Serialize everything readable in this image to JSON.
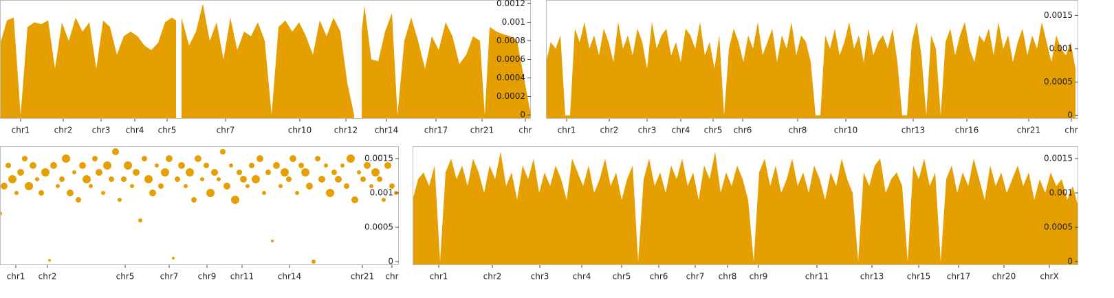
{
  "chart_data": [
    {
      "type": "area",
      "color": "#e69f00",
      "xlim": [
        0,
        772
      ],
      "ylim": [
        -4e-05,
        0.00124
      ],
      "yticks": [
        0,
        0.0002,
        0.0004,
        0.0006,
        0.0008,
        0.001,
        0.0012
      ],
      "xticks": [
        {
          "value": 30,
          "label": "chr1"
        },
        {
          "value": 92,
          "label": "chr2"
        },
        {
          "value": 147,
          "label": "chr3"
        },
        {
          "value": 196,
          "label": "chr4"
        },
        {
          "value": 243,
          "label": "chr5"
        },
        {
          "value": 328,
          "label": "chr7"
        },
        {
          "value": 436,
          "label": "chr10"
        },
        {
          "value": 503,
          "label": "chr12"
        },
        {
          "value": 562,
          "label": "chr14"
        },
        {
          "value": 634,
          "label": "chr17"
        },
        {
          "value": 701,
          "label": "chr21"
        },
        {
          "value": 764,
          "label": "chr"
        }
      ],
      "x": [
        0,
        10,
        20,
        30,
        40,
        50,
        60,
        70,
        80,
        90,
        100,
        110,
        120,
        130,
        140,
        150,
        160,
        170,
        180,
        190,
        200,
        210,
        220,
        230,
        240,
        250,
        256,
        260,
        264,
        275,
        285,
        295,
        305,
        315,
        325,
        335,
        345,
        355,
        365,
        375,
        385,
        395,
        405,
        415,
        425,
        435,
        445,
        455,
        465,
        475,
        485,
        495,
        505,
        515,
        520,
        526,
        530,
        540,
        550,
        560,
        570,
        578,
        588,
        598,
        608,
        618,
        628,
        638,
        648,
        658,
        668,
        678,
        688,
        698,
        705,
        712,
        722,
        732,
        742,
        752,
        762,
        772
      ],
      "values": [
        0.00076,
        0.00102,
        0.00105,
        0,
        0.00095,
        0.001,
        0.00098,
        0.00102,
        0.0005,
        0.001,
        0.0008,
        0.00105,
        0.0009,
        0.001,
        0.0005,
        0.00102,
        0.00095,
        0.00065,
        0.00085,
        0.0009,
        0.00085,
        0.00075,
        0.0007,
        0.00078,
        0.001,
        0.00105,
        0.00102,
        null,
        0.00105,
        0.00075,
        0.0009,
        0.0012,
        0.0008,
        0.001,
        0.0006,
        0.00105,
        0.0007,
        0.0009,
        0.00085,
        0.001,
        0.0008,
        0,
        0.00095,
        0.00102,
        0.0009,
        0.001,
        0.00085,
        0.00065,
        0.00102,
        0.00085,
        0.00105,
        0.0009,
        0.00035,
        0,
        null,
        0.0009,
        0.00118,
        0.0006,
        0.00058,
        0.0009,
        0.0011,
        0,
        0.0008,
        0.00105,
        0.0008,
        0.0005,
        0.00085,
        0.0007,
        0.001,
        0.00085,
        0.00055,
        0.00065,
        0.00085,
        0.0008,
        0,
        0.00095,
        0.0009,
        0.00087,
        0.00085,
        0.0008,
        0.0004,
        0
      ]
    },
    {
      "type": "area",
      "color": "#e69f00",
      "xlim": [
        0,
        774
      ],
      "ylim": [
        -5e-05,
        0.00173
      ],
      "yticks": [
        0,
        0.0005,
        0.001,
        0.0015
      ],
      "xticks": [
        {
          "value": 30,
          "label": "chr1"
        },
        {
          "value": 92,
          "label": "chr2"
        },
        {
          "value": 147,
          "label": "chr3"
        },
        {
          "value": 196,
          "label": "chr4"
        },
        {
          "value": 243,
          "label": "chr5"
        },
        {
          "value": 286,
          "label": "chr6"
        },
        {
          "value": 366,
          "label": "chr8"
        },
        {
          "value": 436,
          "label": "chr10"
        },
        {
          "value": 534,
          "label": "chr13"
        },
        {
          "value": 612,
          "label": "chr16"
        },
        {
          "value": 702,
          "label": "chr21"
        },
        {
          "value": 764,
          "label": "chr"
        }
      ],
      "x": [
        0,
        7,
        14,
        21,
        28,
        35,
        42,
        49,
        56,
        63,
        70,
        77,
        84,
        91,
        98,
        105,
        112,
        119,
        126,
        133,
        140,
        147,
        154,
        161,
        168,
        175,
        182,
        189,
        196,
        203,
        210,
        217,
        224,
        231,
        238,
        245,
        252,
        259,
        266,
        273,
        280,
        287,
        294,
        301,
        308,
        315,
        322,
        329,
        336,
        343,
        350,
        357,
        364,
        371,
        378,
        385,
        392,
        399,
        406,
        413,
        420,
        427,
        434,
        441,
        448,
        455,
        462,
        469,
        476,
        483,
        490,
        497,
        504,
        511,
        518,
        525,
        532,
        539,
        546,
        553,
        560,
        567,
        574,
        581,
        588,
        595,
        602,
        609,
        616,
        623,
        630,
        637,
        644,
        651,
        658,
        665,
        672,
        679,
        686,
        693,
        700,
        707,
        714,
        721,
        728,
        735,
        742,
        749,
        756,
        763,
        770
      ],
      "values": [
        0.0008,
        0.0011,
        0.001,
        0.0012,
        0,
        0,
        0.0013,
        0.0011,
        0.0014,
        0.001,
        0.0012,
        0.0009,
        0.0013,
        0.0011,
        0.0008,
        0.0014,
        0.001,
        0.0012,
        0.0009,
        0.0013,
        0.0011,
        0.0007,
        0.0014,
        0.001,
        0.0012,
        0.0013,
        0.0009,
        0.0011,
        0.0008,
        0.0013,
        0.0012,
        0.001,
        0.0014,
        0.0009,
        0.0011,
        0.0007,
        0.0012,
        0,
        0.001,
        0.0013,
        0.0011,
        0.0008,
        0.0012,
        0.001,
        0.0014,
        0.0009,
        0.0011,
        0.0013,
        0.0008,
        0.0012,
        0.001,
        0.0014,
        0.0009,
        0.0012,
        0.0011,
        0.0008,
        0,
        0,
        0.0012,
        0.001,
        0.0013,
        0.0009,
        0.0011,
        0.0014,
        0.001,
        0.0012,
        0.0008,
        0.0013,
        0.0009,
        0.0011,
        0.0012,
        0.001,
        0.0013,
        0.0008,
        0,
        0,
        0.0011,
        0.0014,
        0.0009,
        0,
        0.0012,
        0.001,
        0,
        0.0011,
        0.0013,
        0.0009,
        0.0012,
        0.0014,
        0.001,
        0.0008,
        0.0012,
        0.0011,
        0.0013,
        0.0009,
        0.0014,
        0.001,
        0.0012,
        0.0008,
        0.0011,
        0.0013,
        0.0009,
        0.0012,
        0.001,
        0.0014,
        0.0011,
        0.0008,
        0.0012,
        0.001,
        0.0009,
        0.0011,
        0.0007
      ]
    },
    {
      "type": "scatter",
      "color": "#e69f00",
      "xlim": [
        0,
        580
      ],
      "ylim": [
        -5e-05,
        0.00168
      ],
      "yticks": [
        0,
        0.0005,
        0.001,
        0.0015
      ],
      "xticks": [
        {
          "value": 23,
          "label": "chr1"
        },
        {
          "value": 69,
          "label": "chr2"
        },
        {
          "value": 182,
          "label": "chr5"
        },
        {
          "value": 246,
          "label": "chr7"
        },
        {
          "value": 301,
          "label": "chr9"
        },
        {
          "value": 352,
          "label": "chr11"
        },
        {
          "value": 421,
          "label": "chr14"
        },
        {
          "value": 527,
          "label": "chr21"
        },
        {
          "value": 570,
          "label": "chr"
        }
      ],
      "x": [
        0,
        6,
        12,
        18,
        24,
        30,
        36,
        42,
        48,
        54,
        60,
        66,
        72,
        78,
        84,
        90,
        96,
        102,
        108,
        114,
        120,
        126,
        132,
        138,
        144,
        150,
        156,
        162,
        168,
        174,
        180,
        186,
        192,
        198,
        204,
        210,
        216,
        222,
        228,
        234,
        240,
        246,
        252,
        258,
        264,
        270,
        276,
        282,
        288,
        294,
        300,
        306,
        312,
        318,
        324,
        330,
        336,
        342,
        348,
        354,
        360,
        366,
        372,
        378,
        384,
        390,
        396,
        402,
        408,
        414,
        420,
        426,
        432,
        438,
        444,
        450,
        456,
        462,
        468,
        474,
        480,
        486,
        492,
        498,
        504,
        510,
        516,
        522,
        528,
        534,
        540,
        546,
        552,
        558,
        564,
        570,
        576
      ],
      "values": [
        0.0007,
        0.0011,
        0.0014,
        0.0012,
        0.001,
        0.0013,
        0.0015,
        0.0011,
        0.0014,
        0.0012,
        0.001,
        0.0013,
        2e-05,
        0.0014,
        0.0011,
        0.0012,
        0.0015,
        0.001,
        0.0013,
        0.0009,
        0.0014,
        0.0012,
        0.0011,
        0.0015,
        0.0013,
        0.001,
        0.0014,
        0.0012,
        0.0016,
        0.0009,
        0.0012,
        0.0014,
        0.0011,
        0.0013,
        0.0006,
        0.0015,
        0.0012,
        0.001,
        0.0014,
        0.0011,
        0.0013,
        0.0015,
        5e-05,
        0.0012,
        0.0014,
        0.0011,
        0.0013,
        0.0009,
        0.0015,
        0.0012,
        0.0014,
        0.001,
        0.0013,
        0.0012,
        0.0016,
        0.0011,
        0.0014,
        0.0009,
        0.0013,
        0.0012,
        0.0011,
        0.0014,
        0.0012,
        0.0015,
        0.001,
        0.0013,
        0.0003,
        0.0014,
        0.0011,
        0.0013,
        0.0012,
        0.0015,
        0.001,
        0.0014,
        0.0013,
        0.0011,
        0,
        0.0015,
        0.0012,
        0.0014,
        0.001,
        0.0013,
        0.0012,
        0.0014,
        0.0011,
        0.0015,
        0.0009,
        0.0013,
        0.0012,
        0.0014,
        0.0011,
        0.0013,
        0.0012,
        0.0009,
        0.0014,
        0.0011,
        0.001
      ],
      "sizes": [
        3,
        5,
        4,
        6,
        3,
        5,
        4,
        6,
        5,
        3,
        4,
        6,
        2,
        5,
        3,
        4,
        6,
        5,
        3,
        4,
        5,
        6,
        3,
        4,
        5,
        3,
        6,
        4,
        5,
        3,
        4,
        6,
        3,
        5,
        3,
        4,
        6,
        5,
        3,
        4,
        6,
        5,
        2,
        4,
        5,
        3,
        6,
        4,
        5,
        3,
        4,
        6,
        5,
        3,
        4,
        5,
        3,
        6,
        4,
        5,
        3,
        4,
        6,
        5,
        3,
        4,
        2,
        5,
        3,
        6,
        4,
        5,
        3,
        4,
        6,
        5,
        3,
        4,
        5,
        3,
        6,
        4,
        5,
        3,
        4,
        6,
        5,
        3,
        4,
        5,
        3,
        6,
        4,
        3,
        5,
        4,
        3
      ]
    },
    {
      "type": "area",
      "color": "#e69f00",
      "xlim": [
        0,
        968
      ],
      "ylim": [
        -5e-05,
        0.00168
      ],
      "yticks": [
        0,
        0.0005,
        0.001,
        0.0015
      ],
      "xticks": [
        {
          "value": 38,
          "label": "chr1"
        },
        {
          "value": 116,
          "label": "chr2"
        },
        {
          "value": 185,
          "label": "chr3"
        },
        {
          "value": 246,
          "label": "chr4"
        },
        {
          "value": 304,
          "label": "chr5"
        },
        {
          "value": 358,
          "label": "chr6"
        },
        {
          "value": 411,
          "label": "chr7"
        },
        {
          "value": 458,
          "label": "chr8"
        },
        {
          "value": 503,
          "label": "chr9"
        },
        {
          "value": 588,
          "label": "chr11"
        },
        {
          "value": 668,
          "label": "chr13"
        },
        {
          "value": 736,
          "label": "chr15"
        },
        {
          "value": 794,
          "label": "chr17"
        },
        {
          "value": 860,
          "label": "chr20"
        },
        {
          "value": 926,
          "label": "chrX"
        }
      ],
      "x": [
        0,
        8,
        16,
        24,
        32,
        40,
        48,
        56,
        64,
        72,
        80,
        88,
        96,
        104,
        112,
        120,
        128,
        136,
        144,
        152,
        160,
        168,
        176,
        184,
        192,
        200,
        208,
        216,
        224,
        232,
        240,
        248,
        256,
        264,
        272,
        280,
        288,
        296,
        304,
        312,
        320,
        328,
        336,
        344,
        352,
        360,
        368,
        376,
        384,
        392,
        400,
        408,
        416,
        424,
        432,
        440,
        448,
        456,
        464,
        472,
        480,
        488,
        496,
        504,
        512,
        520,
        528,
        536,
        544,
        552,
        560,
        568,
        576,
        584,
        592,
        600,
        608,
        616,
        624,
        632,
        640,
        648,
        656,
        664,
        672,
        680,
        688,
        696,
        704,
        712,
        720,
        728,
        736,
        744,
        752,
        760,
        768,
        776,
        784,
        792,
        800,
        808,
        816,
        824,
        832,
        840,
        848,
        856,
        864,
        872,
        880,
        888,
        896,
        904,
        912,
        920,
        928,
        936,
        944,
        952,
        960,
        968
      ],
      "values": [
        0.0009,
        0.0012,
        0.0013,
        0.0011,
        0.0014,
        0,
        0.0013,
        0.0015,
        0.0012,
        0.0014,
        0.0011,
        0.0015,
        0.0013,
        0.001,
        0.0014,
        0.0012,
        0.0016,
        0.0011,
        0.0013,
        0.0009,
        0.0014,
        0.0012,
        0.0015,
        0.001,
        0.0013,
        0.0011,
        0.0014,
        0.0012,
        0.0009,
        0.0015,
        0.0013,
        0.0011,
        0.0014,
        0.001,
        0.0012,
        0.0015,
        0.0011,
        0.0013,
        0.0009,
        0.0012,
        0.0014,
        0,
        0.0012,
        0.0015,
        0.0011,
        0.0013,
        0.001,
        0.0014,
        0.0012,
        0.0015,
        0.0011,
        0.0013,
        0.0009,
        0.0014,
        0.0012,
        0.0016,
        0.001,
        0.0013,
        0.0011,
        0.0014,
        0.0012,
        0.0009,
        0,
        0.0013,
        0.0015,
        0.0011,
        0.0014,
        0.001,
        0.0012,
        0.0015,
        0.0011,
        0.0013,
        0.001,
        0.0014,
        0.0012,
        0.0009,
        0.0013,
        0.0011,
        0.0015,
        0.0012,
        0.001,
        0,
        0.0013,
        0.0011,
        0.0014,
        0.0015,
        0.001,
        0.0012,
        0.0013,
        0.0011,
        0,
        0.0014,
        0.0012,
        0.0015,
        0.0011,
        0.0013,
        0,
        0.0012,
        0.0014,
        0.001,
        0.0013,
        0.0011,
        0.0015,
        0.0012,
        0.0009,
        0.0014,
        0.0011,
        0.0013,
        0.001,
        0.0012,
        0.0014,
        0.0011,
        0.0013,
        0.0009,
        0.0012,
        0.001,
        0.0013,
        0.0011,
        0.0012,
        0.0009,
        0.0011,
        0.0008
      ]
    }
  ]
}
